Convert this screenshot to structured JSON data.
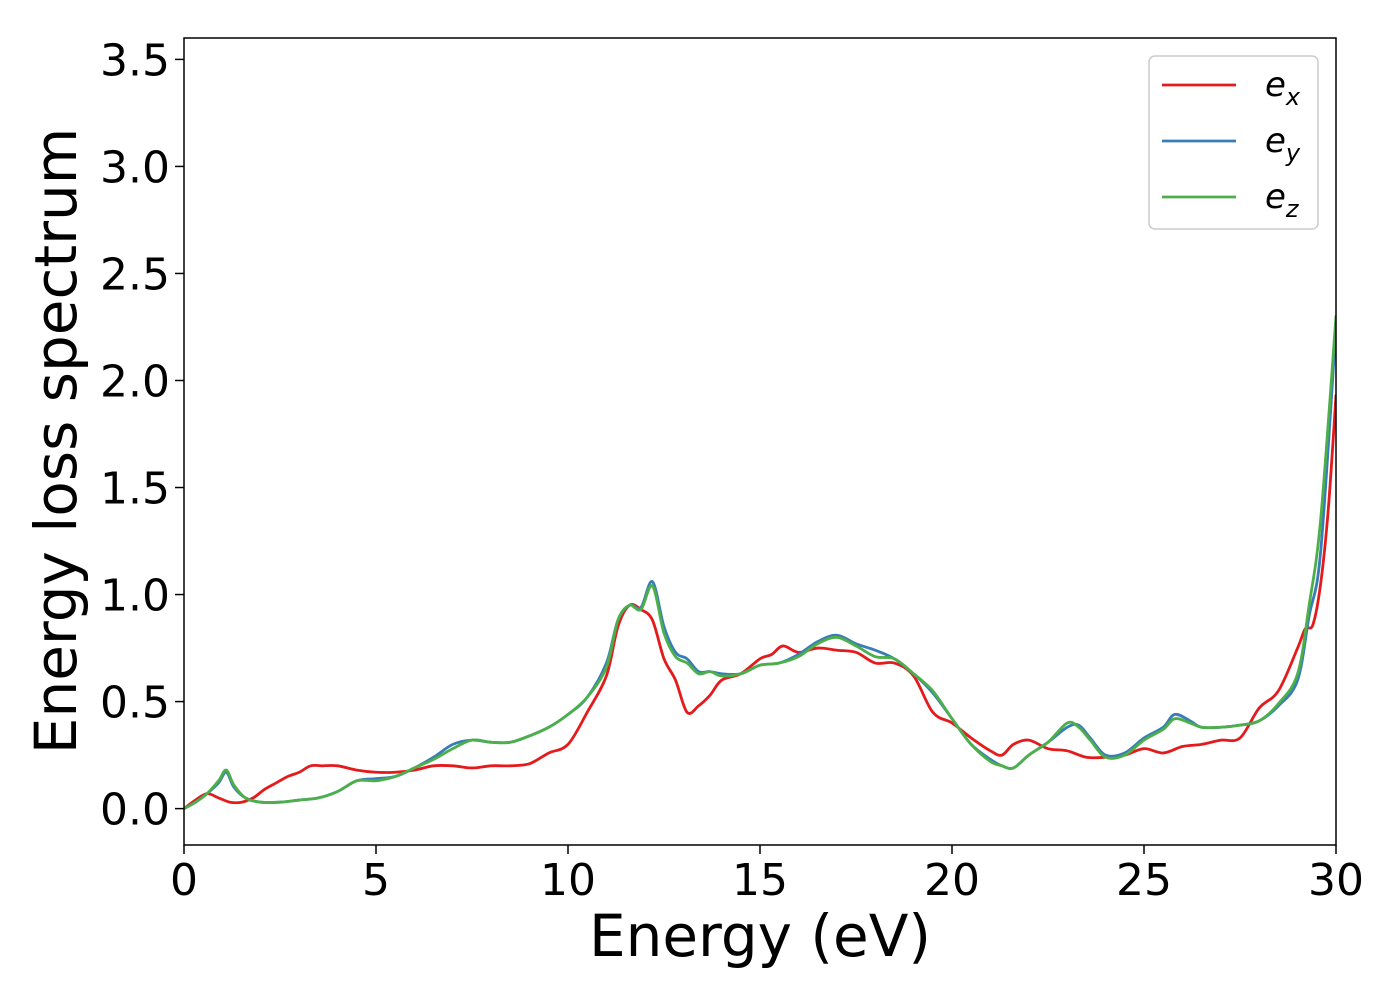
{
  "chart_data": {
    "type": "line",
    "title": "",
    "xlabel": "Energy (eV)",
    "ylabel": "Energy loss spectrum",
    "xlim": [
      0,
      30
    ],
    "ylim": [
      -0.17,
      3.6
    ],
    "xticks": [
      0,
      5,
      10,
      15,
      20,
      25,
      30
    ],
    "yticks": [
      0.0,
      0.5,
      1.0,
      1.5,
      2.0,
      2.5,
      3.0,
      3.5
    ],
    "xtick_labels": [
      "0",
      "5",
      "10",
      "15",
      "20",
      "25",
      "30"
    ],
    "ytick_labels": [
      "0.0",
      "0.5",
      "1.0",
      "1.5",
      "2.0",
      "2.5",
      "3.0",
      "3.5"
    ],
    "grid": false,
    "legend_position": "top-right",
    "series": [
      {
        "name": "e_x",
        "legend_main": "e",
        "legend_sub": "x",
        "color": "#e41a1c",
        "x": [
          0,
          0.3,
          0.6,
          0.9,
          1.2,
          1.5,
          1.8,
          2.1,
          2.4,
          2.7,
          3.0,
          3.3,
          3.6,
          4.0,
          4.5,
          5.0,
          5.5,
          6.0,
          6.5,
          7.0,
          7.5,
          8.0,
          8.5,
          9.0,
          9.5,
          10.0,
          10.5,
          11.0,
          11.3,
          11.6,
          11.9,
          12.2,
          12.5,
          12.8,
          13.1,
          13.4,
          13.7,
          14.0,
          14.5,
          15.0,
          15.3,
          15.6,
          16.0,
          16.5,
          17.0,
          17.5,
          18.0,
          18.5,
          19.0,
          19.5,
          20.0,
          20.5,
          21.0,
          21.3,
          21.6,
          22.0,
          22.5,
          23.0,
          23.5,
          24.0,
          24.5,
          25.0,
          25.5,
          26.0,
          26.5,
          27.0,
          27.5,
          28.0,
          28.5,
          29.0,
          29.2,
          29.4,
          29.6,
          29.8,
          30.0
        ],
        "values": [
          0.0,
          0.04,
          0.07,
          0.05,
          0.03,
          0.03,
          0.05,
          0.09,
          0.12,
          0.15,
          0.17,
          0.2,
          0.2,
          0.2,
          0.18,
          0.17,
          0.17,
          0.18,
          0.2,
          0.2,
          0.19,
          0.2,
          0.2,
          0.21,
          0.26,
          0.3,
          0.45,
          0.62,
          0.85,
          0.95,
          0.93,
          0.88,
          0.7,
          0.6,
          0.45,
          0.48,
          0.53,
          0.6,
          0.63,
          0.7,
          0.72,
          0.76,
          0.73,
          0.75,
          0.74,
          0.73,
          0.68,
          0.68,
          0.62,
          0.45,
          0.4,
          0.33,
          0.27,
          0.25,
          0.3,
          0.32,
          0.28,
          0.27,
          0.24,
          0.24,
          0.25,
          0.28,
          0.26,
          0.29,
          0.3,
          0.32,
          0.33,
          0.47,
          0.55,
          0.75,
          0.84,
          0.86,
          1.05,
          1.4,
          1.93
        ]
      },
      {
        "name": "e_y",
        "legend_main": "e",
        "legend_sub": "y",
        "color": "#377eb8",
        "x": [
          0,
          0.3,
          0.6,
          0.9,
          1.1,
          1.3,
          1.6,
          2.0,
          2.5,
          3.0,
          3.5,
          4.0,
          4.5,
          5.0,
          5.5,
          6.0,
          6.5,
          7.0,
          7.5,
          8.0,
          8.5,
          9.0,
          9.5,
          10.0,
          10.5,
          11.0,
          11.3,
          11.6,
          11.9,
          12.2,
          12.5,
          12.8,
          13.1,
          13.4,
          13.7,
          14.0,
          14.5,
          15.0,
          15.5,
          16.0,
          16.5,
          17.0,
          17.5,
          18.0,
          18.5,
          19.0,
          19.5,
          20.0,
          20.5,
          21.0,
          21.3,
          21.6,
          22.0,
          22.5,
          23.0,
          23.3,
          23.6,
          24.0,
          24.5,
          25.0,
          25.5,
          25.8,
          26.2,
          26.5,
          27.0,
          27.5,
          28.0,
          28.5,
          29.0,
          29.3,
          29.6,
          30.0
        ],
        "values": [
          0.0,
          0.03,
          0.07,
          0.12,
          0.17,
          0.1,
          0.05,
          0.03,
          0.03,
          0.04,
          0.05,
          0.08,
          0.13,
          0.14,
          0.15,
          0.19,
          0.24,
          0.3,
          0.32,
          0.31,
          0.31,
          0.34,
          0.38,
          0.44,
          0.52,
          0.68,
          0.88,
          0.95,
          0.94,
          1.06,
          0.85,
          0.73,
          0.7,
          0.64,
          0.64,
          0.63,
          0.63,
          0.67,
          0.68,
          0.72,
          0.78,
          0.81,
          0.77,
          0.74,
          0.7,
          0.63,
          0.54,
          0.42,
          0.3,
          0.23,
          0.2,
          0.19,
          0.25,
          0.31,
          0.38,
          0.39,
          0.33,
          0.25,
          0.26,
          0.33,
          0.38,
          0.44,
          0.41,
          0.38,
          0.38,
          0.39,
          0.41,
          0.48,
          0.6,
          0.9,
          1.2,
          2.25
        ]
      },
      {
        "name": "e_z",
        "legend_main": "e",
        "legend_sub": "z",
        "color": "#4daf4a",
        "x": [
          0,
          0.3,
          0.6,
          0.9,
          1.1,
          1.3,
          1.6,
          2.0,
          2.5,
          3.0,
          3.5,
          4.0,
          4.5,
          5.0,
          5.5,
          6.0,
          6.5,
          7.0,
          7.5,
          8.0,
          8.5,
          9.0,
          9.5,
          10.0,
          10.5,
          11.0,
          11.3,
          11.6,
          11.9,
          12.2,
          12.5,
          12.8,
          13.1,
          13.4,
          13.7,
          14.0,
          14.5,
          15.0,
          15.5,
          16.0,
          16.5,
          17.0,
          17.5,
          18.0,
          18.5,
          19.0,
          19.5,
          20.0,
          20.5,
          21.0,
          21.3,
          21.6,
          22.0,
          22.5,
          23.0,
          23.3,
          23.6,
          24.0,
          24.5,
          25.0,
          25.5,
          25.8,
          26.2,
          26.5,
          27.0,
          27.5,
          28.0,
          28.5,
          29.0,
          29.3,
          29.6,
          30.0
        ],
        "values": [
          0.0,
          0.03,
          0.07,
          0.13,
          0.18,
          0.11,
          0.05,
          0.03,
          0.03,
          0.04,
          0.05,
          0.08,
          0.13,
          0.13,
          0.15,
          0.19,
          0.23,
          0.28,
          0.32,
          0.31,
          0.31,
          0.34,
          0.38,
          0.44,
          0.52,
          0.66,
          0.88,
          0.95,
          0.93,
          1.04,
          0.82,
          0.71,
          0.68,
          0.63,
          0.64,
          0.62,
          0.63,
          0.67,
          0.68,
          0.71,
          0.77,
          0.8,
          0.76,
          0.71,
          0.7,
          0.63,
          0.55,
          0.42,
          0.3,
          0.22,
          0.2,
          0.19,
          0.25,
          0.31,
          0.4,
          0.38,
          0.32,
          0.24,
          0.25,
          0.32,
          0.37,
          0.42,
          0.4,
          0.38,
          0.38,
          0.39,
          0.41,
          0.49,
          0.63,
          0.95,
          1.35,
          2.3
        ]
      }
    ]
  }
}
